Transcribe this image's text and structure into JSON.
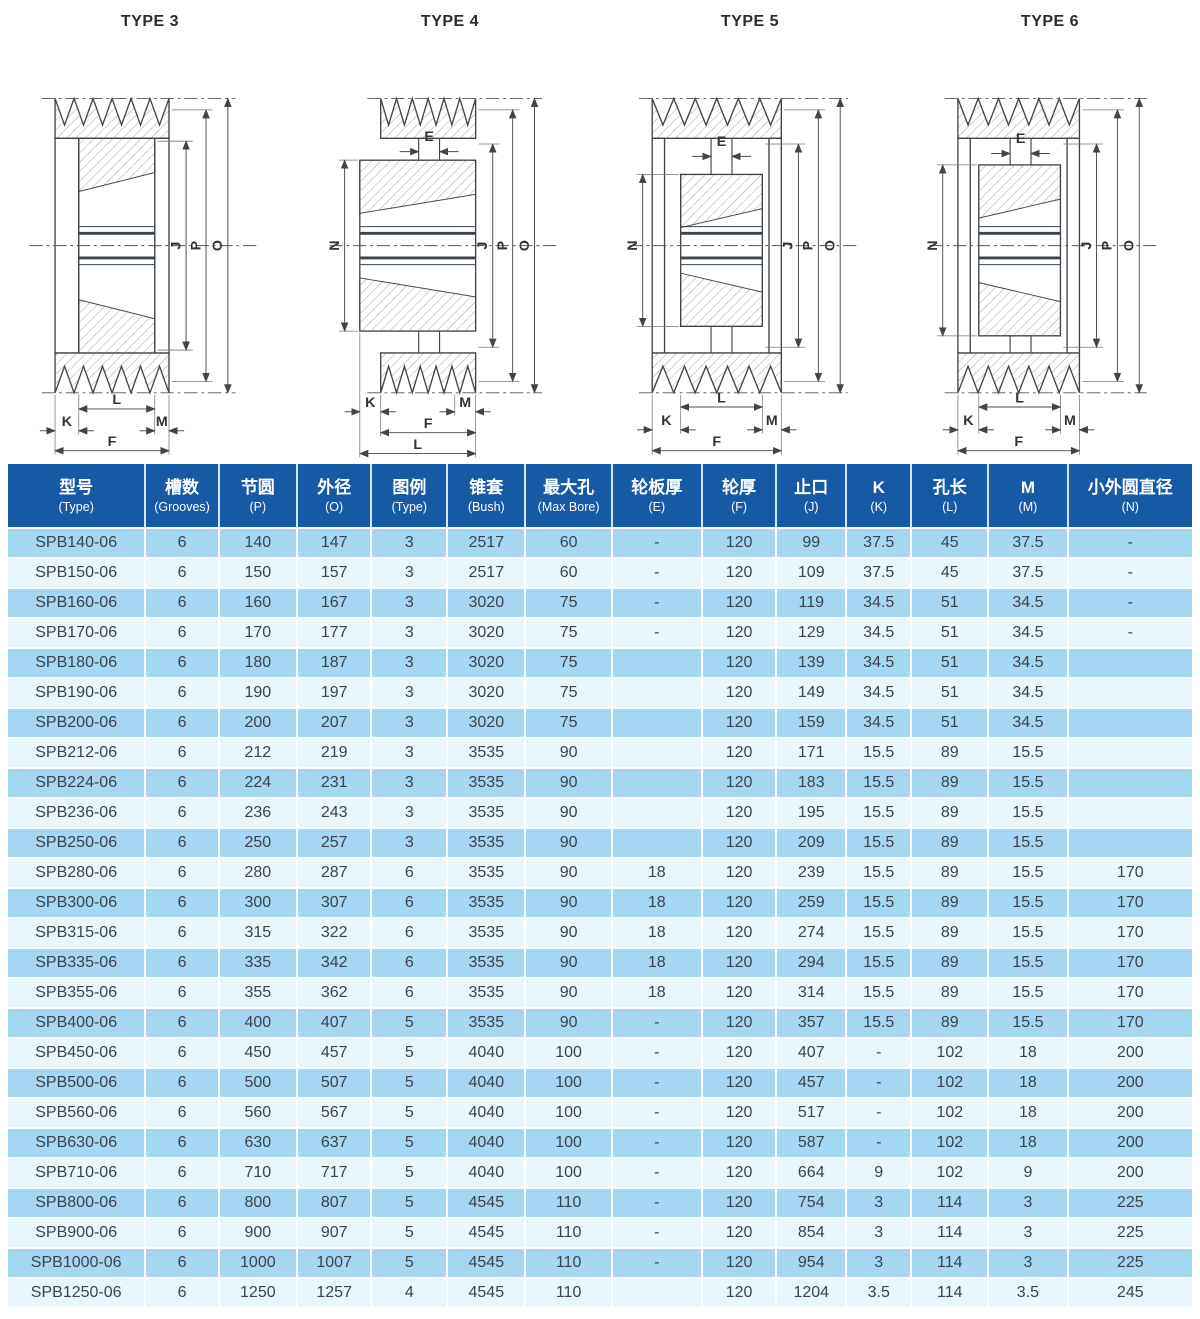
{
  "colors": {
    "header_bg": "#1659a5",
    "row_alt_dark": "#a5d7f2",
    "row_alt_light": "#e9f6fd",
    "header_text": "#ffffff",
    "cell_text": "#3c4349"
  },
  "diagrams": {
    "panels": [
      {
        "title": "TYPE 3",
        "labels": {
          "right": [
            "J",
            "P",
            "O"
          ],
          "bottom": [
            "L",
            "K",
            "M",
            "F"
          ]
        }
      },
      {
        "title": "TYPE 4",
        "labels": {
          "right": [
            "J",
            "P",
            "O"
          ],
          "left": "N",
          "web": "E",
          "bottom": [
            "K",
            "M",
            "F",
            "L"
          ]
        }
      },
      {
        "title": "TYPE 5",
        "labels": {
          "right": [
            "J",
            "P",
            "O"
          ],
          "left": "N",
          "web": "E",
          "bottom": [
            "L",
            "K",
            "M",
            "F"
          ]
        }
      },
      {
        "title": "TYPE 6",
        "labels": {
          "right": [
            "J",
            "P",
            "O"
          ],
          "left": "N",
          "web": "E",
          "bottom": [
            "L",
            "K",
            "M",
            "F"
          ]
        }
      }
    ]
  },
  "table": {
    "columns": [
      {
        "zh": "型号",
        "en": "(Type)"
      },
      {
        "zh": "槽数",
        "en": "(Grooves)"
      },
      {
        "zh": "节圆",
        "en": "(P)"
      },
      {
        "zh": "外径",
        "en": "(O)"
      },
      {
        "zh": "图例",
        "en": "(Type)"
      },
      {
        "zh": "锥套",
        "en": "(Bush)"
      },
      {
        "zh": "最大孔",
        "en": "(Max Bore)"
      },
      {
        "zh": "轮板厚",
        "en": "(E)"
      },
      {
        "zh": "轮厚",
        "en": "(F)"
      },
      {
        "zh": "止口",
        "en": "(J)"
      },
      {
        "zh": "K",
        "en": "(K)"
      },
      {
        "zh": "孔长",
        "en": "(L)"
      },
      {
        "zh": "M",
        "en": "(M)"
      },
      {
        "zh": "小外圆直径",
        "en": "(N)"
      }
    ],
    "rows": [
      [
        "SPB140-06",
        "6",
        "140",
        "147",
        "3",
        "2517",
        "60",
        "-",
        "120",
        "99",
        "37.5",
        "45",
        "37.5",
        "-"
      ],
      [
        "SPB150-06",
        "6",
        "150",
        "157",
        "3",
        "2517",
        "60",
        "-",
        "120",
        "109",
        "37.5",
        "45",
        "37.5",
        "-"
      ],
      [
        "SPB160-06",
        "6",
        "160",
        "167",
        "3",
        "3020",
        "75",
        "-",
        "120",
        "119",
        "34.5",
        "51",
        "34.5",
        "-"
      ],
      [
        "SPB170-06",
        "6",
        "170",
        "177",
        "3",
        "3020",
        "75",
        "-",
        "120",
        "129",
        "34.5",
        "51",
        "34.5",
        "-"
      ],
      [
        "SPB180-06",
        "6",
        "180",
        "187",
        "3",
        "3020",
        "75",
        "",
        "120",
        "139",
        "34.5",
        "51",
        "34.5",
        ""
      ],
      [
        "SPB190-06",
        "6",
        "190",
        "197",
        "3",
        "3020",
        "75",
        "",
        "120",
        "149",
        "34.5",
        "51",
        "34.5",
        ""
      ],
      [
        "SPB200-06",
        "6",
        "200",
        "207",
        "3",
        "3020",
        "75",
        "",
        "120",
        "159",
        "34.5",
        "51",
        "34.5",
        ""
      ],
      [
        "SPB212-06",
        "6",
        "212",
        "219",
        "3",
        "3535",
        "90",
        "",
        "120",
        "171",
        "15.5",
        "89",
        "15.5",
        ""
      ],
      [
        "SPB224-06",
        "6",
        "224",
        "231",
        "3",
        "3535",
        "90",
        "",
        "120",
        "183",
        "15.5",
        "89",
        "15.5",
        ""
      ],
      [
        "SPB236-06",
        "6",
        "236",
        "243",
        "3",
        "3535",
        "90",
        "",
        "120",
        "195",
        "15.5",
        "89",
        "15.5",
        ""
      ],
      [
        "SPB250-06",
        "6",
        "250",
        "257",
        "3",
        "3535",
        "90",
        "",
        "120",
        "209",
        "15.5",
        "89",
        "15.5",
        ""
      ],
      [
        "SPB280-06",
        "6",
        "280",
        "287",
        "6",
        "3535",
        "90",
        "18",
        "120",
        "239",
        "15.5",
        "89",
        "15.5",
        "170"
      ],
      [
        "SPB300-06",
        "6",
        "300",
        "307",
        "6",
        "3535",
        "90",
        "18",
        "120",
        "259",
        "15.5",
        "89",
        "15.5",
        "170"
      ],
      [
        "SPB315-06",
        "6",
        "315",
        "322",
        "6",
        "3535",
        "90",
        "18",
        "120",
        "274",
        "15.5",
        "89",
        "15.5",
        "170"
      ],
      [
        "SPB335-06",
        "6",
        "335",
        "342",
        "6",
        "3535",
        "90",
        "18",
        "120",
        "294",
        "15.5",
        "89",
        "15.5",
        "170"
      ],
      [
        "SPB355-06",
        "6",
        "355",
        "362",
        "6",
        "3535",
        "90",
        "18",
        "120",
        "314",
        "15.5",
        "89",
        "15.5",
        "170"
      ],
      [
        "SPB400-06",
        "6",
        "400",
        "407",
        "5",
        "3535",
        "90",
        "-",
        "120",
        "357",
        "15.5",
        "89",
        "15.5",
        "170"
      ],
      [
        "SPB450-06",
        "6",
        "450",
        "457",
        "5",
        "4040",
        "100",
        "-",
        "120",
        "407",
        "-",
        "102",
        "18",
        "200"
      ],
      [
        "SPB500-06",
        "6",
        "500",
        "507",
        "5",
        "4040",
        "100",
        "-",
        "120",
        "457",
        "-",
        "102",
        "18",
        "200"
      ],
      [
        "SPB560-06",
        "6",
        "560",
        "567",
        "5",
        "4040",
        "100",
        "-",
        "120",
        "517",
        "-",
        "102",
        "18",
        "200"
      ],
      [
        "SPB630-06",
        "6",
        "630",
        "637",
        "5",
        "4040",
        "100",
        "-",
        "120",
        "587",
        "-",
        "102",
        "18",
        "200"
      ],
      [
        "SPB710-06",
        "6",
        "710",
        "717",
        "5",
        "4040",
        "100",
        "-",
        "120",
        "664",
        "9",
        "102",
        "9",
        "200"
      ],
      [
        "SPB800-06",
        "6",
        "800",
        "807",
        "5",
        "4545",
        "110",
        "-",
        "120",
        "754",
        "3",
        "114",
        "3",
        "225"
      ],
      [
        "SPB900-06",
        "6",
        "900",
        "907",
        "5",
        "4545",
        "110",
        "-",
        "120",
        "854",
        "3",
        "114",
        "3",
        "225"
      ],
      [
        "SPB1000-06",
        "6",
        "1000",
        "1007",
        "5",
        "4545",
        "110",
        "-",
        "120",
        "954",
        "3",
        "114",
        "3",
        "225"
      ],
      [
        "SPB1250-06",
        "6",
        "1250",
        "1257",
        "4",
        "4545",
        "110",
        "",
        "120",
        "1204",
        "3.5",
        "114",
        "3.5",
        "245"
      ]
    ]
  }
}
